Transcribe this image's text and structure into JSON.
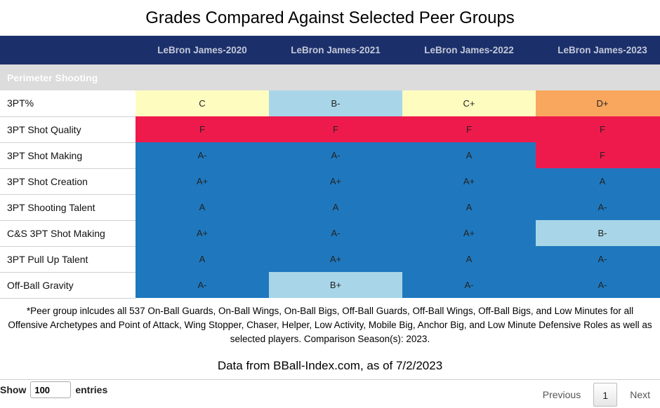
{
  "title": "Grades Compared Against Selected Peer Groups",
  "colors": {
    "header_bg": "#1b2f6b",
    "section_bg": "#dcdcdc",
    "grade_A": "#1f78be",
    "grade_B_light": "#a8d6e8",
    "grade_C": "#fffcc0",
    "grade_D": "#f9a75e",
    "grade_F": "#ee1a4c"
  },
  "table": {
    "columns": [
      "",
      "LeBron James-2020",
      "LeBron James-2021",
      "LeBron James-2022",
      "LeBron James-2023"
    ],
    "section": "Perimeter Shooting",
    "rows": [
      {
        "metric": "3PT%",
        "grades": [
          "C",
          "B-",
          "C+",
          "D+"
        ],
        "colors": [
          "#fffcc0",
          "#a8d6e8",
          "#fffcc0",
          "#f9a75e"
        ]
      },
      {
        "metric": "3PT Shot Quality",
        "grades": [
          "F",
          "F",
          "F",
          "F"
        ],
        "colors": [
          "#ee1a4c",
          "#ee1a4c",
          "#ee1a4c",
          "#ee1a4c"
        ]
      },
      {
        "metric": "3PT Shot Making",
        "grades": [
          "A-",
          "A-",
          "A",
          "F"
        ],
        "colors": [
          "#1f78be",
          "#1f78be",
          "#1f78be",
          "#ee1a4c"
        ]
      },
      {
        "metric": "3PT Shot Creation",
        "grades": [
          "A+",
          "A+",
          "A+",
          "A"
        ],
        "colors": [
          "#1f78be",
          "#1f78be",
          "#1f78be",
          "#1f78be"
        ]
      },
      {
        "metric": "3PT Shooting Talent",
        "grades": [
          "A",
          "A",
          "A",
          "A-"
        ],
        "colors": [
          "#1f78be",
          "#1f78be",
          "#1f78be",
          "#1f78be"
        ]
      },
      {
        "metric": "C&S 3PT Shot Making",
        "grades": [
          "A+",
          "A-",
          "A+",
          "B-"
        ],
        "colors": [
          "#1f78be",
          "#1f78be",
          "#1f78be",
          "#a8d6e8"
        ]
      },
      {
        "metric": "3PT Pull Up Talent",
        "grades": [
          "A",
          "A+",
          "A",
          "A-"
        ],
        "colors": [
          "#1f78be",
          "#1f78be",
          "#1f78be",
          "#1f78be"
        ]
      },
      {
        "metric": "Off-Ball Gravity",
        "grades": [
          "A-",
          "B+",
          "A-",
          "A-"
        ],
        "colors": [
          "#1f78be",
          "#a8d6e8",
          "#1f78be",
          "#1f78be"
        ]
      }
    ]
  },
  "footnote": {
    "line1": "*Peer group inlcudes all 537 On-Ball Guards, On-Ball Wings, On-Ball Bigs, Off-Ball Guards, Off-Ball Wings, Off-Ball Bigs, and Low Minutes for all",
    "line2": "Offensive Archetypes and Point of Attack, Wing Stopper, Chaser, Helper, Low Activity, Mobile Big, Anchor Big, and Low Minute Defensive Roles as well as",
    "line3": "selected players. Comparison Season(s): 2023."
  },
  "source": "Data from BBall-Index.com, as of 7/2/2023",
  "controls": {
    "show_label": "Show",
    "entries_value": "100",
    "entries_label": "entries",
    "previous_label": "Previous",
    "current_page": "1",
    "next_label": "Next"
  }
}
